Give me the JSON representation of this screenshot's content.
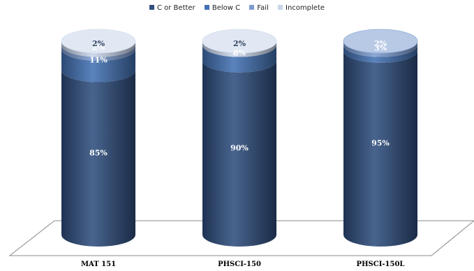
{
  "chart_data": {
    "type": "bar",
    "stacked": true,
    "shape": "cylinder",
    "categories": [
      "MAT 151",
      "PHSCI-150",
      "PHSCI-150L"
    ],
    "series": [
      {
        "name": "C or Better",
        "color": "#2f4f7f",
        "values": [
          85,
          90,
          95
        ],
        "labels": [
          "85%",
          "90%",
          "95%"
        ]
      },
      {
        "name": "Below C",
        "color": "#4472b4",
        "values": [
          11,
          8,
          3
        ],
        "labels": [
          "11%",
          "8%",
          "3%"
        ]
      },
      {
        "name": "Fail",
        "color": "#7e9dcf",
        "values": [
          2,
          0,
          2
        ],
        "labels": [
          "2%",
          "",
          "2%"
        ]
      },
      {
        "name": "Incomplete",
        "color": "#c9d6ea",
        "values": [
          2,
          2,
          0
        ],
        "labels": [
          "2%",
          "2%",
          ""
        ]
      }
    ],
    "legend_position": "top",
    "grid": false
  }
}
